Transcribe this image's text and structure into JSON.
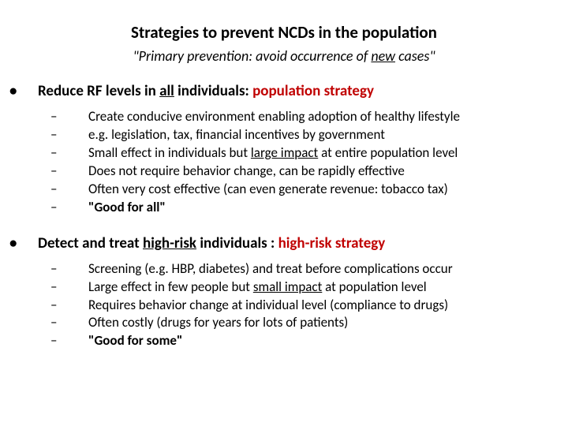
{
  "title": "Strategies to prevent NCDs in the  population",
  "subtitle_pre": "\"Primary prevention: avoid occurrence of ",
  "subtitle_u": "new",
  "subtitle_post": " cases\"",
  "s1": {
    "h_pre": "Reduce RF levels in ",
    "h_u1": "all",
    "h_mid": " individuals: ",
    "h_red": "population strategy",
    "items": {
      "a": "Create conducive environment enabling adoption of healthy lifestyle",
      "b": "e.g. legislation, tax, financial incentives by government",
      "c_pre": "Small effect in individuals but ",
      "c_u": "large impact",
      "c_post": " at entire population level",
      "d": "Does not require behavior change, can be rapidly effective",
      "e": "Often very cost effective (can even generate revenue: tobacco tax)",
      "f": "\"Good for all\""
    }
  },
  "s2": {
    "h_pre": "Detect and treat ",
    "h_u1": "high-risk",
    "h_mid": " individuals : ",
    "h_red": "high-risk strategy",
    "items": {
      "a": "Screening (e.g. HBP, diabetes) and treat before complications occur",
      "b_pre": "Large effect in few people but ",
      "b_u": "small impact",
      "b_post": " at population level",
      "c": "Requires behavior change at individual level (compliance to drugs)",
      "d": "Often costly (drugs for years for lots of patients)",
      "e": "\"Good for some\""
    }
  }
}
